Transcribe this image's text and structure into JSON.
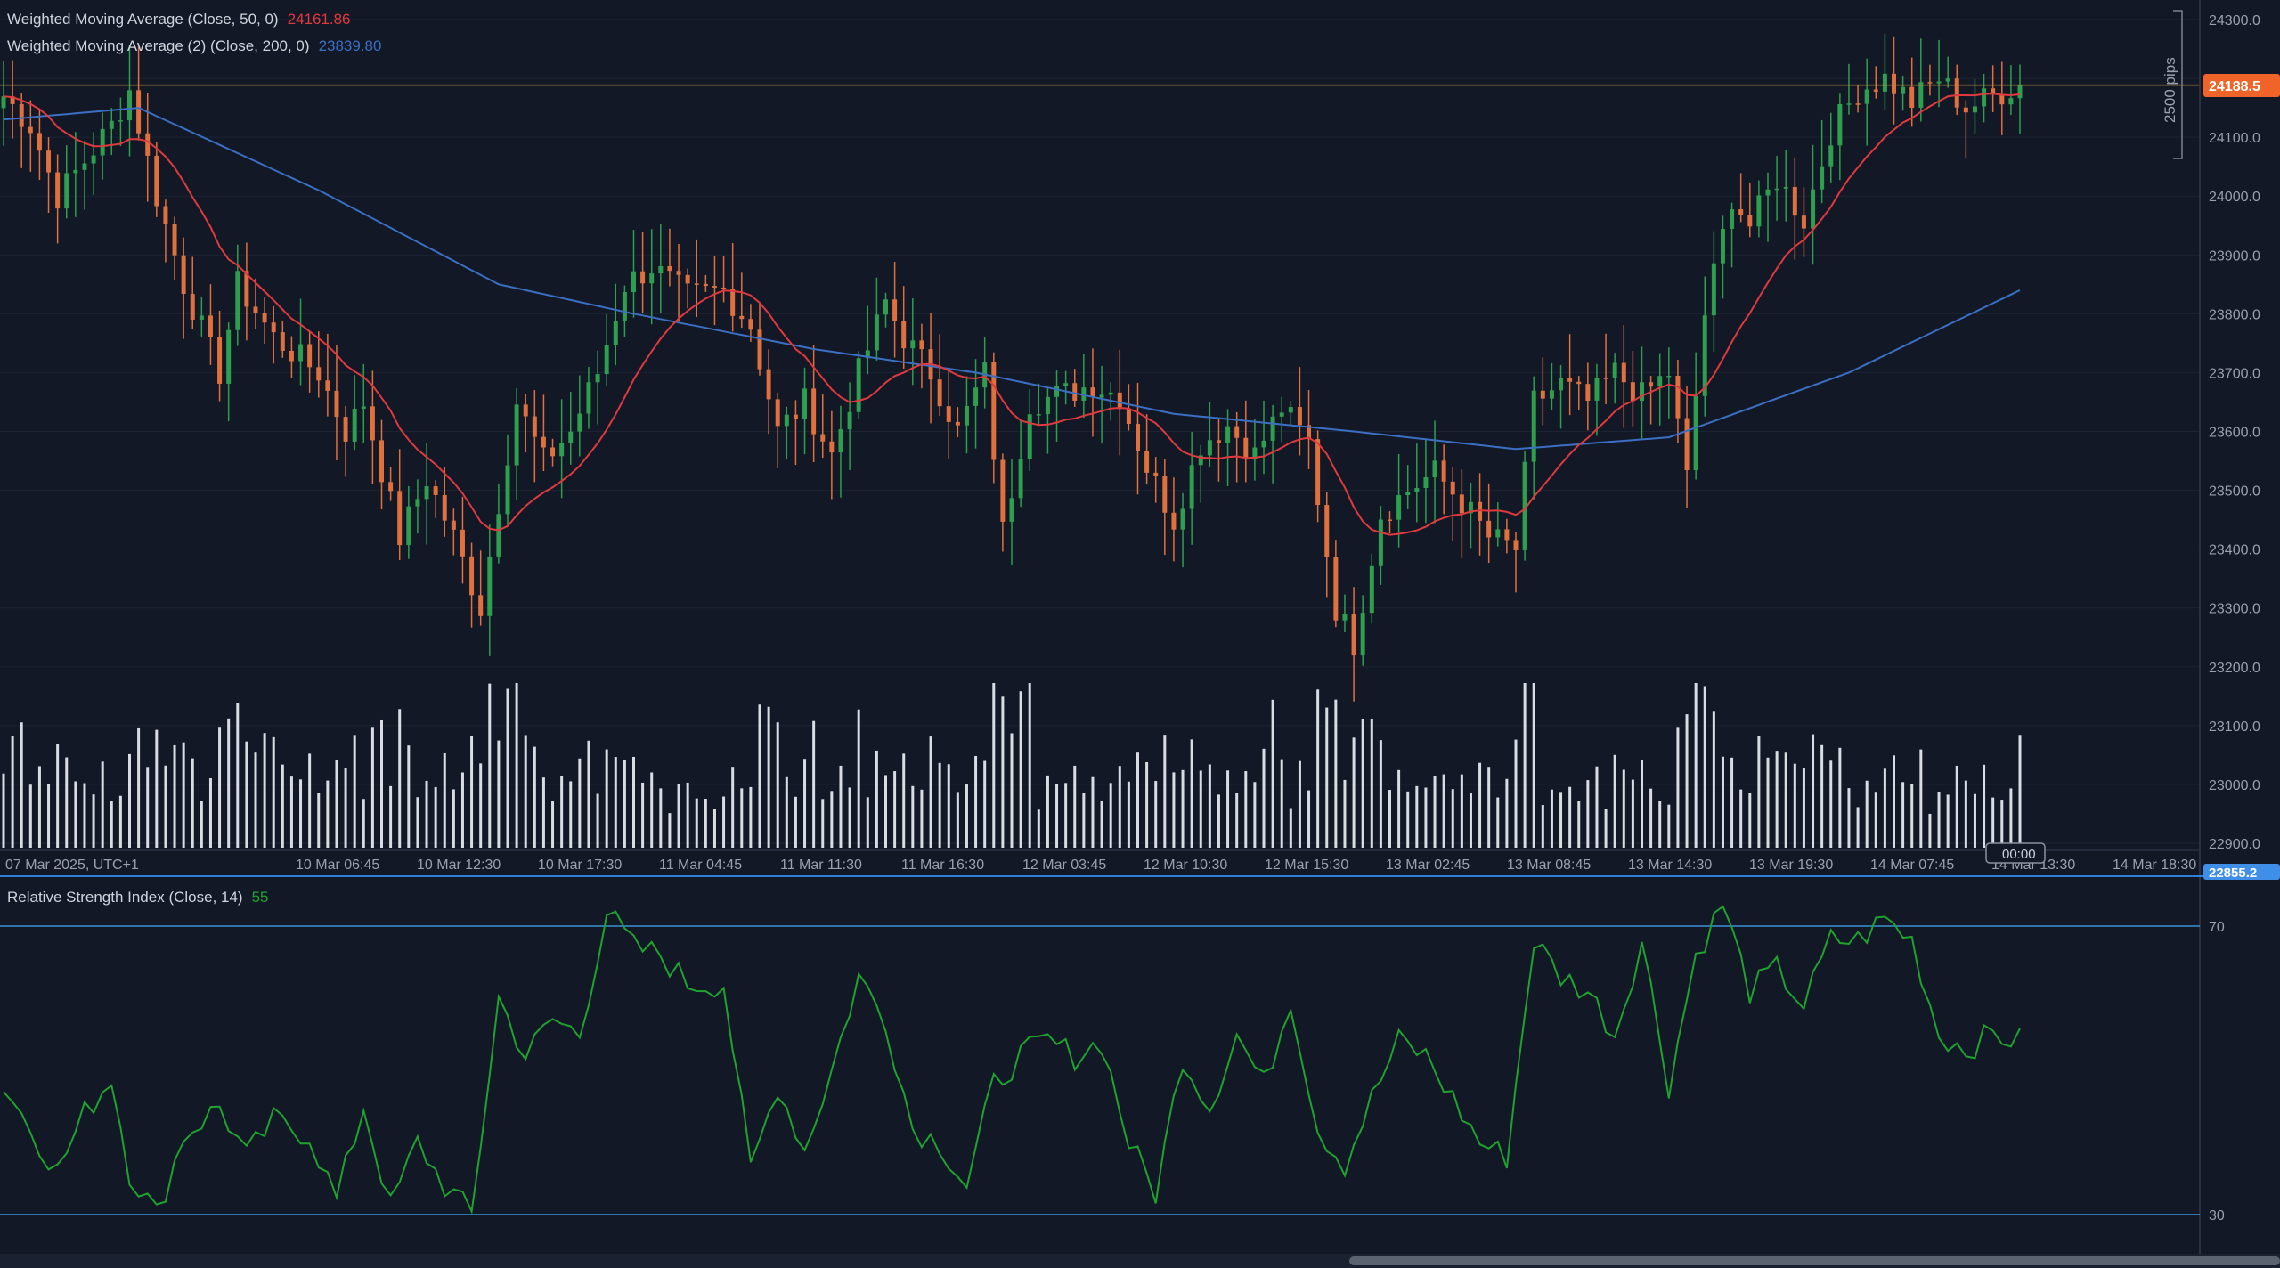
{
  "colors": {
    "background": "#121826",
    "grid": "#1c2333",
    "up": "#2e9e4f",
    "down": "#e0703d",
    "wma50": "#e0393e",
    "wma200": "#3b6fc4",
    "volume": "#d9dce3",
    "rsi": "#1fa32e",
    "rsi_levels": "#3a8fd6",
    "price_marker": "#f0642a",
    "aux_marker": "#3f8fe8",
    "text": "#cfd3dc",
    "axis_text": "#9aa1ae"
  },
  "legend": {
    "wma50_label": "Weighted Moving Average (Close, 50, 0)",
    "wma50_value": "24161.86",
    "wma200_label": "Weighted Moving Average (2) (Close, 200, 0)",
    "wma200_value": "23839.80",
    "rsi_label": "Relative Strength Index (Close, 14)",
    "rsi_value": "55"
  },
  "price_axis": {
    "ticks": [
      "24300.0",
      "24100.0",
      "24000.0",
      "23900.0",
      "23800.0",
      "23700.0",
      "23600.0",
      "23500.0",
      "23400.0",
      "23300.0",
      "23200.0",
      "23100.0",
      "23000.0",
      "22900.0"
    ],
    "last_price": "24188.5",
    "aux_price": "22855.2",
    "measure_label": "2500 pips"
  },
  "time_axis": {
    "labels": [
      "07 Mar 2025, UTC+1",
      "10 Mar 06:45",
      "10 Mar 12:30",
      "10 Mar 17:30",
      "11 Mar 04:45",
      "11 Mar 11:30",
      "11 Mar 16:30",
      "12 Mar 03:45",
      "12 Mar 10:30",
      "12 Mar 15:30",
      "13 Mar 02:45",
      "13 Mar 08:45",
      "13 Mar 14:30",
      "13 Mar 19:30",
      "14 Mar 07:45",
      "14 Mar 13:30",
      "14 Mar 18:30"
    ],
    "cursor_label": "00:00"
  },
  "rsi_axis": {
    "upper": "70",
    "lower": "30"
  },
  "chart_data": {
    "type": "candlestick",
    "price_range": [
      22880,
      24320
    ],
    "rsi_range": [
      24,
      79
    ],
    "rsi_levels": [
      70,
      30
    ],
    "close_anchors": [
      [
        0,
        24170
      ],
      [
        3,
        24120
      ],
      [
        6,
        24000
      ],
      [
        9,
        24060
      ],
      [
        12,
        24120
      ],
      [
        14,
        24180
      ],
      [
        17,
        24000
      ],
      [
        20,
        23850
      ],
      [
        24,
        23700
      ],
      [
        26,
        23850
      ],
      [
        30,
        23760
      ],
      [
        35,
        23700
      ],
      [
        38,
        23600
      ],
      [
        40,
        23650
      ],
      [
        44,
        23420
      ],
      [
        47,
        23520
      ],
      [
        50,
        23420
      ],
      [
        53,
        23300
      ],
      [
        55,
        23480
      ],
      [
        57,
        23650
      ],
      [
        60,
        23550
      ],
      [
        63,
        23600
      ],
      [
        66,
        23700
      ],
      [
        69,
        23850
      ],
      [
        72,
        23880
      ],
      [
        76,
        23830
      ],
      [
        80,
        23840
      ],
      [
        83,
        23780
      ],
      [
        86,
        23600
      ],
      [
        89,
        23650
      ],
      [
        92,
        23560
      ],
      [
        95,
        23700
      ],
      [
        98,
        23820
      ],
      [
        100,
        23760
      ],
      [
        103,
        23700
      ],
      [
        106,
        23600
      ],
      [
        109,
        23700
      ],
      [
        111,
        23430
      ],
      [
        114,
        23650
      ],
      [
        117,
        23660
      ],
      [
        121,
        23680
      ],
      [
        124,
        23660
      ],
      [
        127,
        23540
      ],
      [
        130,
        23450
      ],
      [
        133,
        23580
      ],
      [
        136,
        23610
      ],
      [
        139,
        23560
      ],
      [
        142,
        23640
      ],
      [
        145,
        23580
      ],
      [
        148,
        23300
      ],
      [
        150,
        23240
      ],
      [
        153,
        23460
      ],
      [
        156,
        23500
      ],
      [
        159,
        23530
      ],
      [
        162,
        23480
      ],
      [
        165,
        23420
      ],
      [
        168,
        23400
      ],
      [
        170,
        23650
      ],
      [
        173,
        23680
      ],
      [
        176,
        23650
      ],
      [
        179,
        23700
      ],
      [
        182,
        23660
      ],
      [
        185,
        23700
      ],
      [
        187,
        23520
      ],
      [
        189,
        23800
      ],
      [
        192,
        24000
      ],
      [
        194,
        23950
      ],
      [
        197,
        24030
      ],
      [
        200,
        23960
      ],
      [
        203,
        24110
      ],
      [
        206,
        24180
      ],
      [
        209,
        24200
      ],
      [
        212,
        24160
      ],
      [
        215,
        24200
      ],
      [
        218,
        24150
      ],
      [
        221,
        24170
      ],
      [
        224,
        24190
      ]
    ],
    "wma200_anchors": [
      [
        0,
        24130
      ],
      [
        15,
        24150
      ],
      [
        35,
        24010
      ],
      [
        55,
        23850
      ],
      [
        70,
        23800
      ],
      [
        90,
        23740
      ],
      [
        108,
        23700
      ],
      [
        130,
        23630
      ],
      [
        150,
        23600
      ],
      [
        168,
        23570
      ],
      [
        185,
        23590
      ],
      [
        205,
        23700
      ],
      [
        224,
        23840
      ]
    ],
    "rsi_anchors": [
      [
        0,
        48
      ],
      [
        3,
        42
      ],
      [
        6,
        36
      ],
      [
        9,
        44
      ],
      [
        12,
        49
      ],
      [
        14,
        36
      ],
      [
        17,
        30
      ],
      [
        20,
        41
      ],
      [
        24,
        45
      ],
      [
        27,
        38
      ],
      [
        30,
        43
      ],
      [
        34,
        41
      ],
      [
        37,
        32
      ],
      [
        40,
        45
      ],
      [
        43,
        31
      ],
      [
        46,
        40
      ],
      [
        49,
        34
      ],
      [
        52,
        30
      ],
      [
        55,
        60
      ],
      [
        58,
        52
      ],
      [
        61,
        57
      ],
      [
        64,
        55
      ],
      [
        67,
        72
      ],
      [
        70,
        67
      ],
      [
        73,
        66
      ],
      [
        76,
        62
      ],
      [
        80,
        62
      ],
      [
        83,
        36
      ],
      [
        86,
        48
      ],
      [
        89,
        39
      ],
      [
        92,
        50
      ],
      [
        95,
        63
      ],
      [
        98,
        57
      ],
      [
        101,
        42
      ],
      [
        104,
        40
      ],
      [
        107,
        34
      ],
      [
        110,
        48
      ],
      [
        113,
        52
      ],
      [
        116,
        54
      ],
      [
        119,
        52
      ],
      [
        122,
        54
      ],
      [
        125,
        40
      ],
      [
        128,
        33
      ],
      [
        131,
        52
      ],
      [
        134,
        45
      ],
      [
        137,
        55
      ],
      [
        140,
        48
      ],
      [
        143,
        60
      ],
      [
        146,
        42
      ],
      [
        149,
        37
      ],
      [
        152,
        46
      ],
      [
        155,
        54
      ],
      [
        158,
        52
      ],
      [
        161,
        46
      ],
      [
        164,
        40
      ],
      [
        167,
        38
      ],
      [
        170,
        68
      ],
      [
        173,
        63
      ],
      [
        176,
        61
      ],
      [
        179,
        55
      ],
      [
        182,
        68
      ],
      [
        185,
        48
      ],
      [
        188,
        66
      ],
      [
        191,
        73
      ],
      [
        194,
        61
      ],
      [
        197,
        64
      ],
      [
        200,
        59
      ],
      [
        203,
        68
      ],
      [
        206,
        68
      ],
      [
        209,
        71
      ],
      [
        212,
        68
      ],
      [
        215,
        55
      ],
      [
        218,
        53
      ],
      [
        221,
        55
      ],
      [
        224,
        54
      ]
    ]
  }
}
